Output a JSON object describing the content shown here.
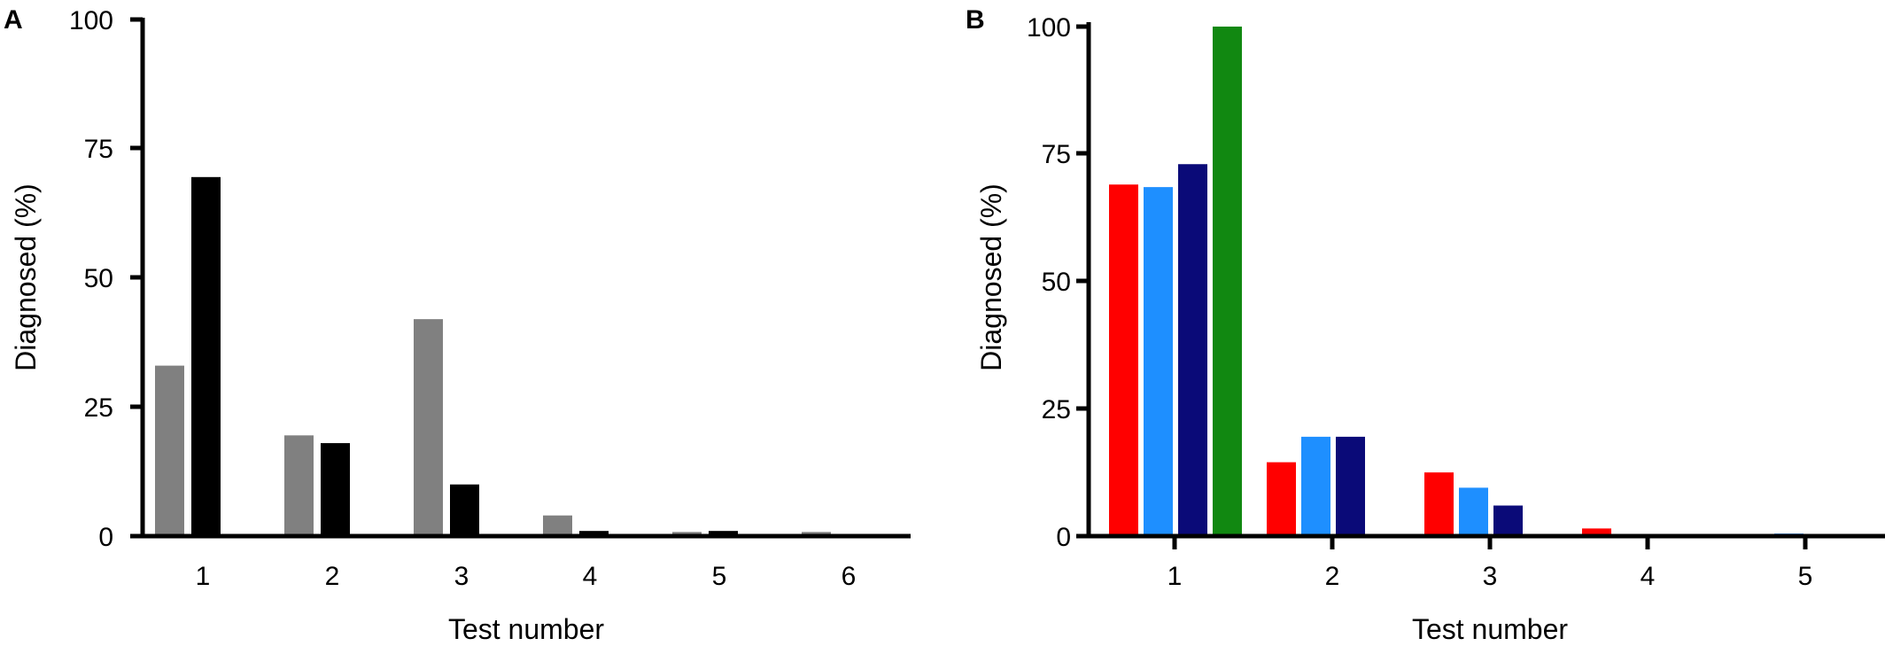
{
  "chart_data": [
    {
      "panel": "A",
      "type": "bar",
      "categories": [
        "1",
        "2",
        "3",
        "4",
        "5",
        "6"
      ],
      "series": [
        {
          "color": "#808080",
          "values": [
            33,
            19.5,
            42,
            4,
            0.8,
            0.8
          ]
        },
        {
          "color": "#000000",
          "values": [
            69.5,
            18,
            10,
            1,
            1,
            0
          ]
        }
      ],
      "xlabel": "Test number",
      "ylabel": "Diagnosed (%)",
      "ylim": [
        0,
        100
      ],
      "yticks": [
        "0",
        "25",
        "50",
        "75",
        "100"
      ],
      "grid": false
    },
    {
      "panel": "B",
      "type": "bar",
      "categories": [
        "1",
        "2",
        "3",
        "4",
        "5"
      ],
      "series": [
        {
          "color": "#ff0000",
          "values": [
            69,
            14.5,
            12.5,
            1.5,
            0
          ]
        },
        {
          "color": "#1e8fff",
          "values": [
            68.5,
            19.5,
            9.5,
            0,
            0.5
          ]
        },
        {
          "color": "#0a0a78",
          "values": [
            73,
            19.5,
            6,
            0,
            0
          ]
        },
        {
          "color": "#118811",
          "values": [
            100,
            0,
            0,
            0,
            0
          ]
        }
      ],
      "xlabel": "Test number",
      "ylabel": "Diagnosed (%)",
      "ylim": [
        0,
        100
      ],
      "yticks": [
        "0",
        "25",
        "50",
        "75",
        "100"
      ],
      "grid": false
    }
  ]
}
